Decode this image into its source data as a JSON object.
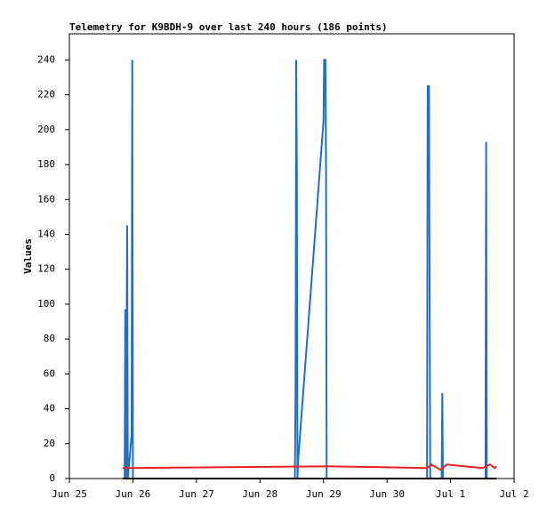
{
  "chart_data": {
    "type": "line",
    "title": "Telemetry for K9BDH-9 over last 240 hours (186 points)",
    "y_label": "Values",
    "xlim": [
      0,
      7
    ],
    "ylim": [
      0,
      255
    ],
    "xticks": [
      {
        "value": 0,
        "label": "Jun 25"
      },
      {
        "value": 1,
        "label": "Jun 26"
      },
      {
        "value": 2,
        "label": "Jun 27"
      },
      {
        "value": 3,
        "label": "Jun 28"
      },
      {
        "value": 4,
        "label": "Jun 29"
      },
      {
        "value": 5,
        "label": "Jun 30"
      },
      {
        "value": 6,
        "label": "Jul 1"
      },
      {
        "value": 7,
        "label": "Jul 2"
      }
    ],
    "yticks": [
      0,
      20,
      40,
      60,
      80,
      100,
      120,
      140,
      160,
      180,
      200,
      220,
      240
    ],
    "series": [
      {
        "color": "#1f6fc4",
        "x": [
          0.87,
          0.88,
          0.89,
          0.91,
          0.92,
          0.98,
          0.99,
          1.0,
          3.55,
          3.56,
          3.57,
          3.58,
          3.59,
          3.6,
          4.0,
          4.01,
          4.03,
          4.04,
          4.05,
          5.63,
          5.64,
          5.66,
          5.67,
          5.68,
          5.86,
          5.87,
          5.88,
          6.55,
          6.56,
          6.57,
          6.72
        ],
        "values": [
          0,
          97,
          0,
          145,
          0,
          25,
          240,
          0,
          0,
          49,
          240,
          177,
          0,
          10,
          205,
          240,
          240,
          177,
          0,
          0,
          225,
          225,
          112,
          0,
          0,
          49,
          0,
          0,
          193,
          0,
          0
        ]
      },
      {
        "color": "#e8231e",
        "x": [
          0.84,
          0.87,
          4.09,
          4.93,
          5.63,
          5.7,
          5.84,
          5.94,
          6.5,
          6.62,
          6.7,
          6.72
        ],
        "values": [
          6,
          6,
          7,
          6.5,
          6,
          8,
          5,
          8,
          6,
          8,
          6,
          7
        ]
      },
      {
        "color": "#000000",
        "x": [
          0.84,
          6.72
        ],
        "values": [
          0,
          0
        ]
      }
    ]
  }
}
